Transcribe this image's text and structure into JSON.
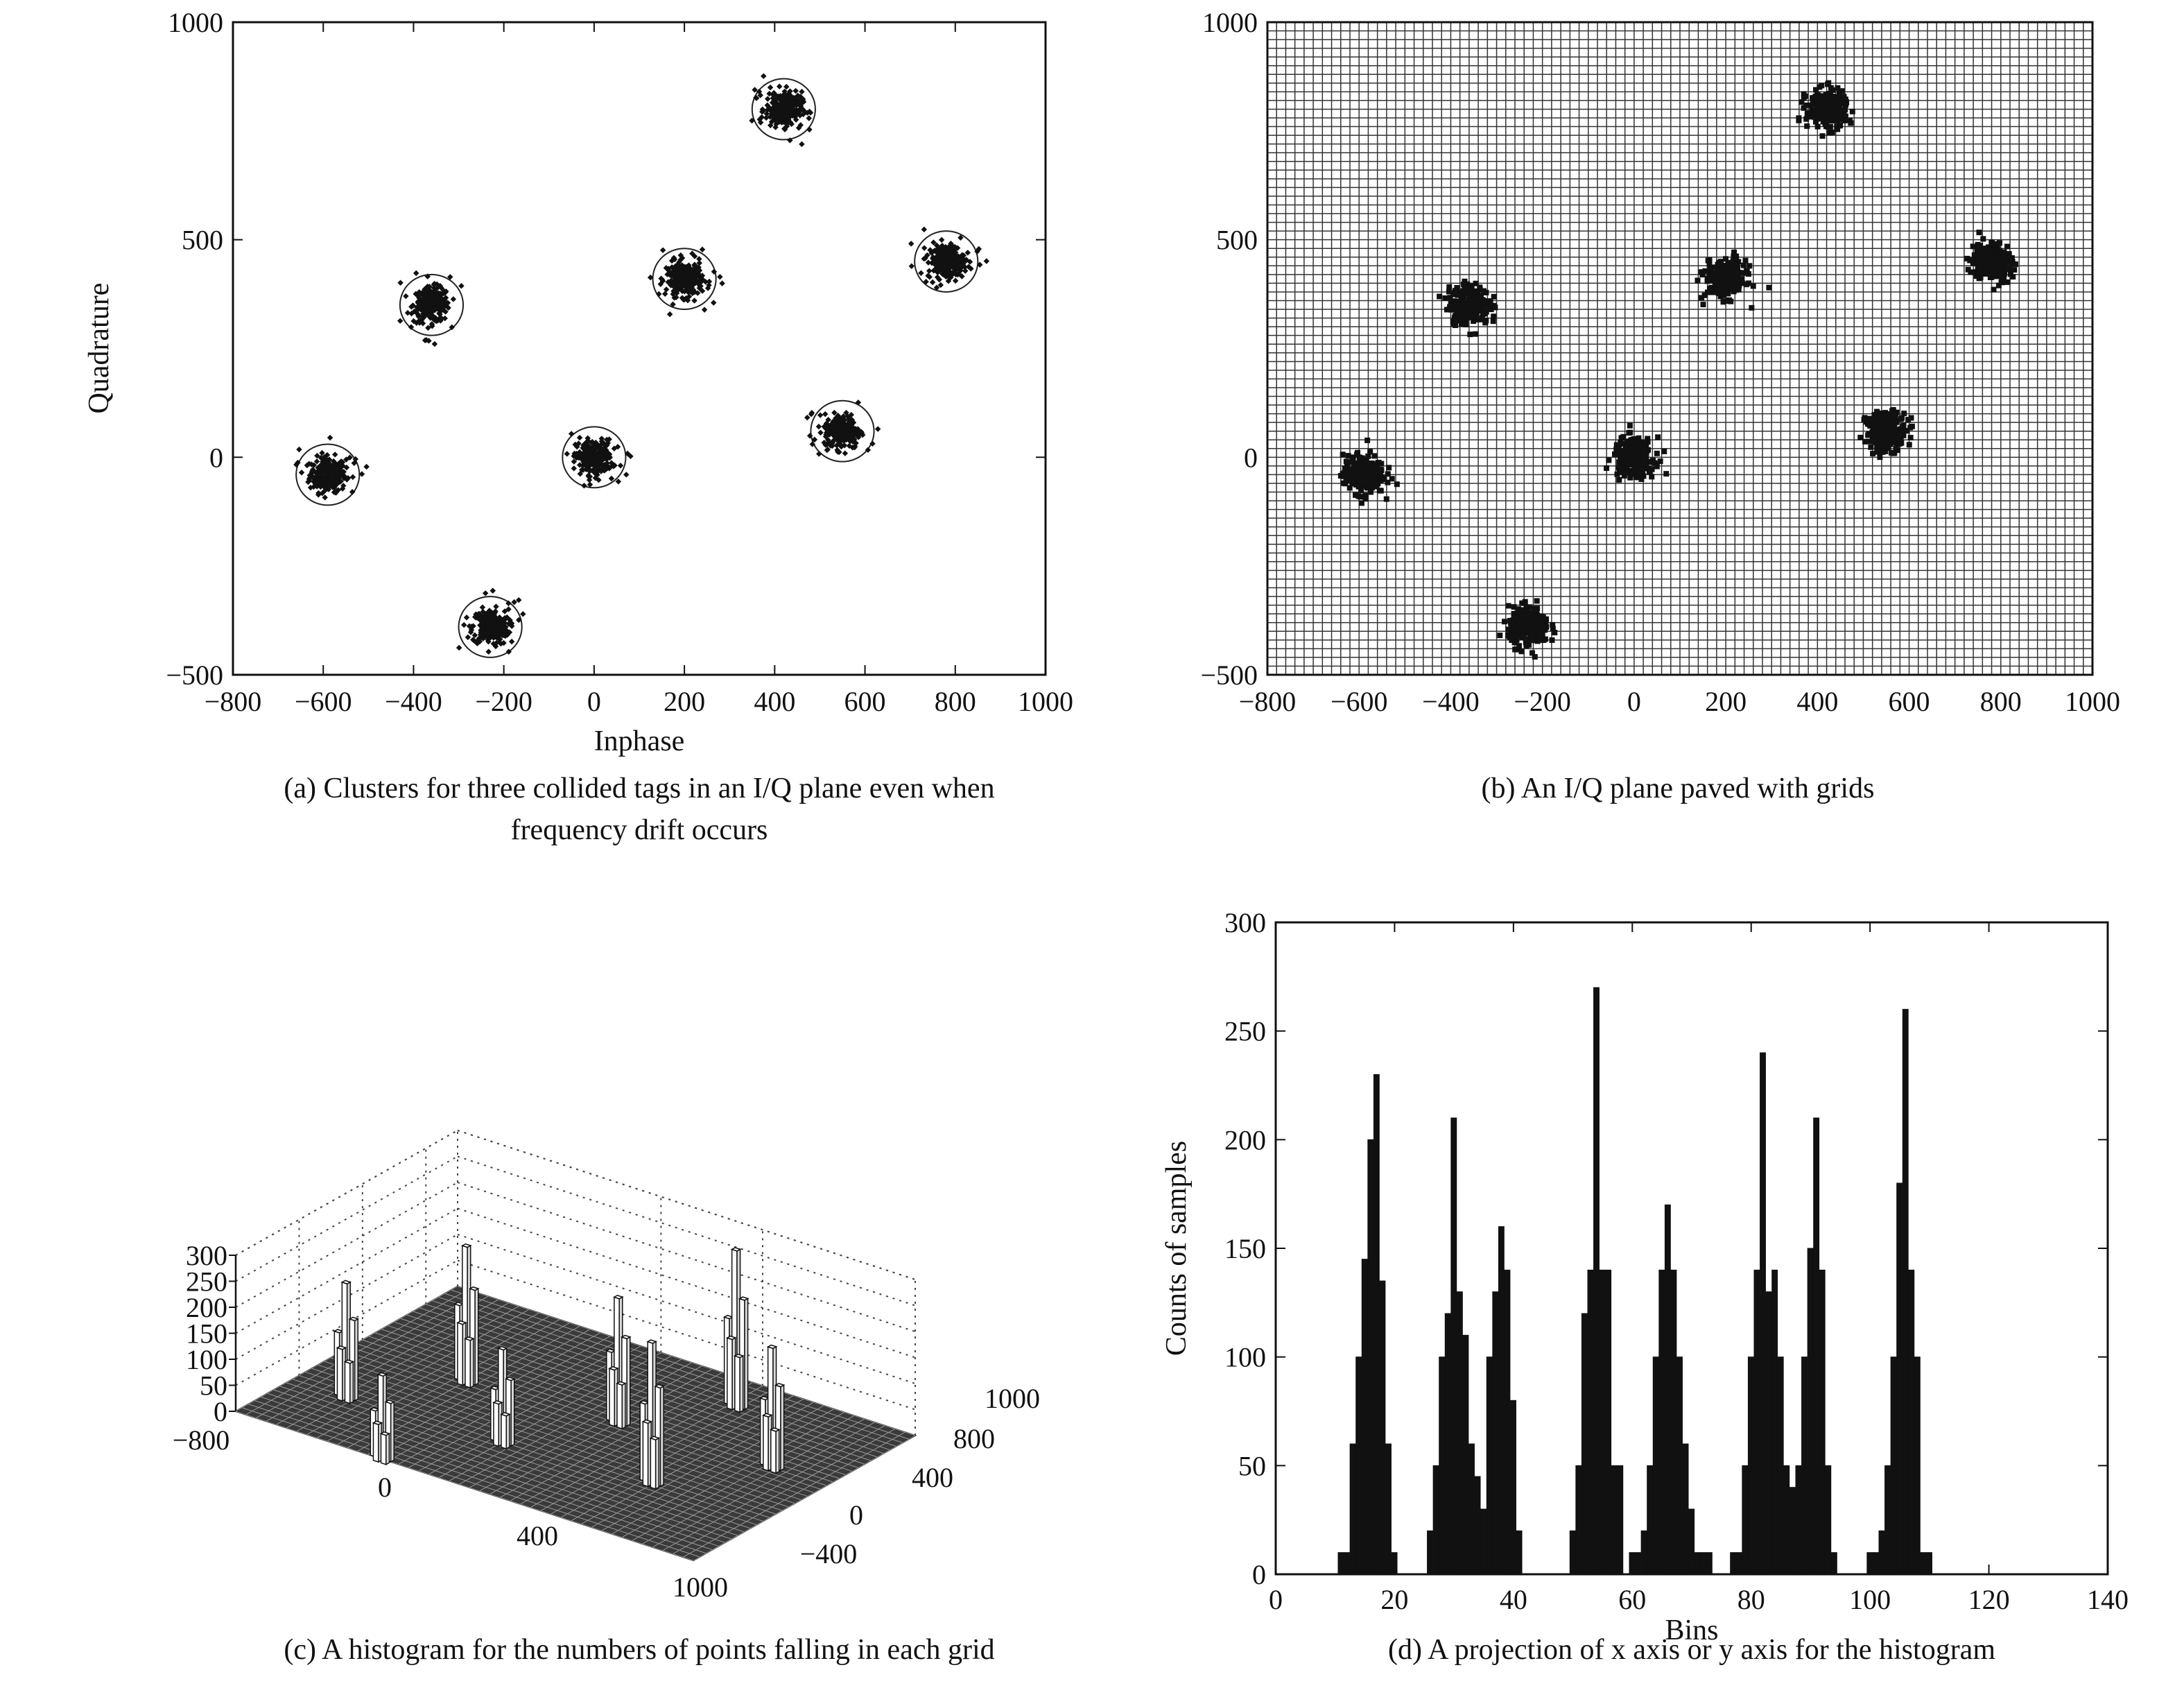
{
  "chart_data": [
    {
      "id": "a",
      "type": "scatter",
      "caption_lines": [
        "(a) Clusters for three collided tags in an I/Q plane even when",
        "frequency drift occurs"
      ],
      "xlabel": "Inphase",
      "ylabel": "Quadrature",
      "xlim": [
        -800,
        1000
      ],
      "ylim": [
        -500,
        1000
      ],
      "xticks": [
        "-800",
        "-600",
        "-400",
        "-200",
        "0",
        "200",
        "400",
        "600",
        "800",
        "1000"
      ],
      "yticks": [
        "-500",
        "0",
        "500",
        "1000"
      ],
      "grid": false,
      "clusters": [
        {
          "x": -590,
          "y": -40
        },
        {
          "x": -360,
          "y": 350
        },
        {
          "x": -230,
          "y": -390
        },
        {
          "x": 0,
          "y": 0
        },
        {
          "x": 200,
          "y": 410
        },
        {
          "x": 420,
          "y": 800
        },
        {
          "x": 550,
          "y": 60
        },
        {
          "x": 780,
          "y": 450
        }
      ],
      "cluster_radius": 70
    },
    {
      "id": "b",
      "type": "scatter",
      "caption_lines": [
        "(b) An I/Q plane paved with grids"
      ],
      "xlim": [
        -800,
        1000
      ],
      "ylim": [
        -500,
        1000
      ],
      "xticks": [
        "-800",
        "-600",
        "-400",
        "-200",
        "0",
        "200",
        "400",
        "600",
        "800",
        "1000"
      ],
      "yticks": [
        "-500",
        "0",
        "500",
        "1000"
      ],
      "grid": true,
      "grid_step": 20,
      "clusters": [
        {
          "x": -590,
          "y": -40
        },
        {
          "x": -360,
          "y": 350
        },
        {
          "x": -230,
          "y": -390
        },
        {
          "x": 0,
          "y": 0
        },
        {
          "x": 200,
          "y": 410
        },
        {
          "x": 420,
          "y": 800
        },
        {
          "x": 550,
          "y": 60
        },
        {
          "x": 780,
          "y": 450
        }
      ]
    },
    {
      "id": "c",
      "type": "bar3d",
      "caption_lines": [
        "(c) A histogram for the numbers of points falling in each grid"
      ],
      "zticks": [
        "0",
        "50",
        "100",
        "150",
        "200",
        "250",
        "300"
      ],
      "xticks": [
        "-800",
        "0",
        "400",
        "1000"
      ],
      "yticks": [
        "1000",
        "800",
        "400",
        "0",
        "-400"
      ],
      "zlim": [
        0,
        300
      ],
      "peaks": [
        {
          "x": -590,
          "y": -40,
          "z": 220
        },
        {
          "x": -360,
          "y": 350,
          "z": 260
        },
        {
          "x": -230,
          "y": -390,
          "z": 160
        },
        {
          "x": 0,
          "y": 0,
          "z": 180
        },
        {
          "x": 200,
          "y": 410,
          "z": 240
        },
        {
          "x": 420,
          "y": 800,
          "z": 300
        },
        {
          "x": 550,
          "y": 60,
          "z": 270
        },
        {
          "x": 780,
          "y": 450,
          "z": 230
        }
      ]
    },
    {
      "id": "d",
      "type": "bar",
      "caption_lines": [
        "(d) A projection of x axis or y axis for the histogram"
      ],
      "xlabel": "Bins",
      "ylabel": "Counts of samples",
      "xlim": [
        0,
        140
      ],
      "ylim": [
        0,
        300
      ],
      "xticks": [
        "0",
        "20",
        "40",
        "60",
        "80",
        "100",
        "120",
        "140"
      ],
      "yticks": [
        "0",
        "50",
        "100",
        "150",
        "200",
        "250",
        "300"
      ],
      "x": [
        11,
        12,
        13,
        14,
        15,
        16,
        17,
        18,
        19,
        20,
        26,
        27,
        28,
        29,
        30,
        31,
        32,
        33,
        34,
        35,
        36,
        37,
        38,
        39,
        40,
        41,
        50,
        51,
        52,
        53,
        54,
        55,
        56,
        57,
        58,
        60,
        61,
        62,
        63,
        64,
        65,
        66,
        67,
        68,
        69,
        70,
        71,
        72,
        73,
        77,
        78,
        79,
        80,
        81,
        82,
        83,
        84,
        85,
        86,
        87,
        88,
        89,
        90,
        91,
        92,
        93,
        94,
        100,
        101,
        102,
        103,
        104,
        105,
        106,
        107,
        108,
        109,
        110
      ],
      "values": [
        10,
        10,
        60,
        100,
        145,
        200,
        230,
        135,
        60,
        10,
        20,
        50,
        100,
        120,
        210,
        130,
        110,
        60,
        45,
        30,
        100,
        130,
        160,
        140,
        80,
        20,
        20,
        50,
        120,
        140,
        270,
        140,
        140,
        50,
        50,
        10,
        10,
        20,
        50,
        100,
        140,
        170,
        140,
        100,
        60,
        30,
        10,
        10,
        10,
        10,
        10,
        50,
        100,
        140,
        240,
        130,
        140,
        100,
        50,
        40,
        50,
        100,
        150,
        210,
        140,
        50,
        10,
        10,
        10,
        20,
        50,
        100,
        180,
        260,
        140,
        100,
        10,
        10
      ]
    }
  ]
}
